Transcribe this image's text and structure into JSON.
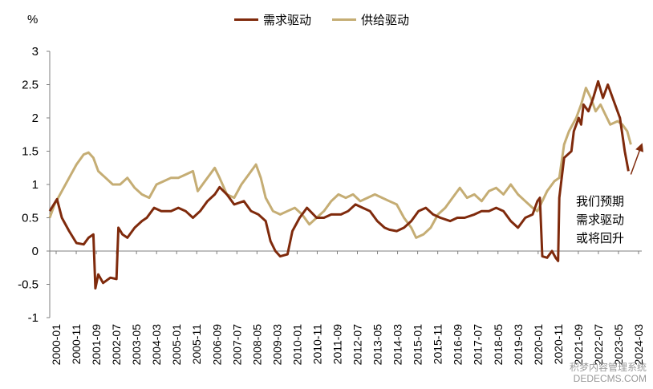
{
  "chart_data": {
    "type": "line",
    "unit": "%",
    "ylim": [
      -1,
      3
    ],
    "yticks": [
      3,
      2.5,
      2,
      1.5,
      1,
      0.5,
      0,
      -0.5,
      -1
    ],
    "ytick_labels": [
      "3",
      "2.5",
      "2",
      "1.5",
      "1",
      "0.5",
      "0",
      "-0.5",
      "-1"
    ],
    "xlim": [
      2000.0,
      2024.4
    ],
    "xtick_labels": [
      "2000-01",
      "2000-11",
      "2001-09",
      "2002-07",
      "2003-05",
      "2004-03",
      "2005-01",
      "2005-11",
      "2006-09",
      "2007-07",
      "2008-05",
      "2009-03",
      "2010-01",
      "2010-11",
      "2011-09",
      "2012-07",
      "2013-05",
      "2014-03",
      "2015-01",
      "2015-11",
      "2016-09",
      "2017-07",
      "2018-05",
      "2019-03",
      "2020-01",
      "2020-11",
      "2021-09",
      "2022-07",
      "2023-05",
      "2024-03"
    ],
    "series": [
      {
        "name": "需求驱动",
        "color": "#7f2a0c",
        "points": [
          [
            2000.0,
            0.6
          ],
          [
            2000.3,
            0.78
          ],
          [
            2000.5,
            0.5
          ],
          [
            2000.8,
            0.3
          ],
          [
            2001.1,
            0.12
          ],
          [
            2001.4,
            0.1
          ],
          [
            2001.6,
            0.2
          ],
          [
            2001.8,
            0.25
          ],
          [
            2001.88,
            -0.56
          ],
          [
            2002.0,
            -0.35
          ],
          [
            2002.2,
            -0.48
          ],
          [
            2002.5,
            -0.4
          ],
          [
            2002.75,
            -0.42
          ],
          [
            2002.83,
            0.35
          ],
          [
            2003.0,
            0.25
          ],
          [
            2003.2,
            0.2
          ],
          [
            2003.5,
            0.35
          ],
          [
            2003.8,
            0.45
          ],
          [
            2004.0,
            0.5
          ],
          [
            2004.3,
            0.65
          ],
          [
            2004.6,
            0.6
          ],
          [
            2005.0,
            0.6
          ],
          [
            2005.3,
            0.65
          ],
          [
            2005.6,
            0.6
          ],
          [
            2005.9,
            0.5
          ],
          [
            2006.2,
            0.6
          ],
          [
            2006.5,
            0.75
          ],
          [
            2006.8,
            0.85
          ],
          [
            2007.0,
            0.96
          ],
          [
            2007.3,
            0.85
          ],
          [
            2007.6,
            0.7
          ],
          [
            2008.0,
            0.75
          ],
          [
            2008.3,
            0.6
          ],
          [
            2008.6,
            0.55
          ],
          [
            2008.9,
            0.45
          ],
          [
            2009.1,
            0.15
          ],
          [
            2009.3,
            0.0
          ],
          [
            2009.5,
            -0.08
          ],
          [
            2009.8,
            -0.05
          ],
          [
            2010.0,
            0.3
          ],
          [
            2010.3,
            0.5
          ],
          [
            2010.6,
            0.65
          ],
          [
            2011.0,
            0.5
          ],
          [
            2011.3,
            0.5
          ],
          [
            2011.6,
            0.55
          ],
          [
            2012.0,
            0.55
          ],
          [
            2012.3,
            0.6
          ],
          [
            2012.6,
            0.7
          ],
          [
            2012.9,
            0.65
          ],
          [
            2013.2,
            0.6
          ],
          [
            2013.5,
            0.45
          ],
          [
            2013.8,
            0.35
          ],
          [
            2014.0,
            0.32
          ],
          [
            2014.3,
            0.3
          ],
          [
            2014.6,
            0.35
          ],
          [
            2014.9,
            0.45
          ],
          [
            2015.2,
            0.6
          ],
          [
            2015.5,
            0.65
          ],
          [
            2015.8,
            0.55
          ],
          [
            2016.1,
            0.5
          ],
          [
            2016.5,
            0.45
          ],
          [
            2016.8,
            0.5
          ],
          [
            2017.1,
            0.5
          ],
          [
            2017.5,
            0.55
          ],
          [
            2017.8,
            0.6
          ],
          [
            2018.1,
            0.6
          ],
          [
            2018.4,
            0.65
          ],
          [
            2018.7,
            0.6
          ],
          [
            2019.0,
            0.45
          ],
          [
            2019.3,
            0.35
          ],
          [
            2019.6,
            0.5
          ],
          [
            2019.9,
            0.55
          ],
          [
            2020.1,
            0.75
          ],
          [
            2020.2,
            0.8
          ],
          [
            2020.3,
            -0.08
          ],
          [
            2020.5,
            -0.1
          ],
          [
            2020.7,
            0.0
          ],
          [
            2020.85,
            -0.1
          ],
          [
            2020.95,
            -0.15
          ],
          [
            2021.0,
            0.8
          ],
          [
            2021.2,
            1.4
          ],
          [
            2021.5,
            1.5
          ],
          [
            2021.6,
            1.8
          ],
          [
            2021.8,
            2.0
          ],
          [
            2021.9,
            1.9
          ],
          [
            2022.0,
            2.2
          ],
          [
            2022.2,
            2.1
          ],
          [
            2022.4,
            2.3
          ],
          [
            2022.6,
            2.55
          ],
          [
            2022.8,
            2.3
          ],
          [
            2023.0,
            2.5
          ],
          [
            2023.2,
            2.3
          ],
          [
            2023.5,
            2.0
          ],
          [
            2023.7,
            1.5
          ],
          [
            2023.85,
            1.2
          ]
        ]
      },
      {
        "name": "供给驱动",
        "color": "#c5ad74",
        "points": [
          [
            2000.0,
            0.5
          ],
          [
            2000.2,
            0.7
          ],
          [
            2000.5,
            0.9
          ],
          [
            2000.8,
            1.1
          ],
          [
            2001.1,
            1.3
          ],
          [
            2001.4,
            1.45
          ],
          [
            2001.6,
            1.48
          ],
          [
            2001.8,
            1.4
          ],
          [
            2002.0,
            1.2
          ],
          [
            2002.3,
            1.1
          ],
          [
            2002.6,
            1.0
          ],
          [
            2002.9,
            1.0
          ],
          [
            2003.2,
            1.1
          ],
          [
            2003.5,
            0.95
          ],
          [
            2003.8,
            0.85
          ],
          [
            2004.1,
            0.8
          ],
          [
            2004.4,
            1.0
          ],
          [
            2004.7,
            1.05
          ],
          [
            2005.0,
            1.1
          ],
          [
            2005.3,
            1.1
          ],
          [
            2005.6,
            1.15
          ],
          [
            2005.9,
            1.2
          ],
          [
            2006.1,
            0.9
          ],
          [
            2006.3,
            1.0
          ],
          [
            2006.6,
            1.15
          ],
          [
            2006.8,
            1.25
          ],
          [
            2007.0,
            1.1
          ],
          [
            2007.3,
            0.85
          ],
          [
            2007.6,
            0.8
          ],
          [
            2007.9,
            1.0
          ],
          [
            2008.2,
            1.15
          ],
          [
            2008.5,
            1.3
          ],
          [
            2008.7,
            1.1
          ],
          [
            2008.9,
            0.8
          ],
          [
            2009.2,
            0.6
          ],
          [
            2009.5,
            0.55
          ],
          [
            2009.8,
            0.6
          ],
          [
            2010.1,
            0.65
          ],
          [
            2010.4,
            0.55
          ],
          [
            2010.7,
            0.4
          ],
          [
            2011.0,
            0.5
          ],
          [
            2011.3,
            0.6
          ],
          [
            2011.6,
            0.75
          ],
          [
            2011.9,
            0.85
          ],
          [
            2012.2,
            0.8
          ],
          [
            2012.5,
            0.85
          ],
          [
            2012.8,
            0.75
          ],
          [
            2013.1,
            0.8
          ],
          [
            2013.4,
            0.85
          ],
          [
            2013.7,
            0.8
          ],
          [
            2014.0,
            0.75
          ],
          [
            2014.3,
            0.7
          ],
          [
            2014.6,
            0.5
          ],
          [
            2014.9,
            0.35
          ],
          [
            2015.1,
            0.2
          ],
          [
            2015.4,
            0.25
          ],
          [
            2015.7,
            0.35
          ],
          [
            2016.0,
            0.55
          ],
          [
            2016.3,
            0.65
          ],
          [
            2016.6,
            0.8
          ],
          [
            2016.9,
            0.95
          ],
          [
            2017.2,
            0.8
          ],
          [
            2017.5,
            0.85
          ],
          [
            2017.8,
            0.75
          ],
          [
            2018.1,
            0.9
          ],
          [
            2018.4,
            0.95
          ],
          [
            2018.7,
            0.85
          ],
          [
            2019.0,
            1.0
          ],
          [
            2019.3,
            0.85
          ],
          [
            2019.6,
            0.75
          ],
          [
            2019.9,
            0.65
          ],
          [
            2020.1,
            0.6
          ],
          [
            2020.3,
            0.75
          ],
          [
            2020.5,
            0.9
          ],
          [
            2020.8,
            1.05
          ],
          [
            2021.0,
            1.1
          ],
          [
            2021.2,
            1.6
          ],
          [
            2021.4,
            1.8
          ],
          [
            2021.7,
            2.0
          ],
          [
            2021.9,
            2.2
          ],
          [
            2022.1,
            2.45
          ],
          [
            2022.3,
            2.3
          ],
          [
            2022.5,
            2.1
          ],
          [
            2022.7,
            2.2
          ],
          [
            2022.9,
            2.05
          ],
          [
            2023.1,
            1.9
          ],
          [
            2023.4,
            1.95
          ],
          [
            2023.6,
            1.9
          ],
          [
            2023.8,
            1.8
          ],
          [
            2023.95,
            1.6
          ]
        ]
      }
    ],
    "annotation": [
      "我们预期",
      "需求驱动",
      "或将回升"
    ],
    "arrow": {
      "from": [
        2023.95,
        1.15
      ],
      "to": [
        2024.4,
        1.6
      ]
    }
  },
  "watermark": [
    "积梦内容管理系统",
    "DEDECMS.COM"
  ]
}
